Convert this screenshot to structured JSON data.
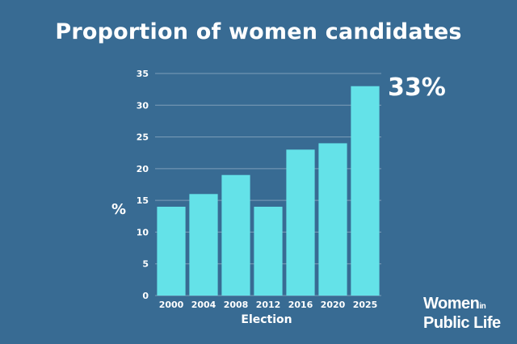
{
  "page": {
    "background": "#386b93"
  },
  "chart_data": {
    "type": "bar",
    "title": "Proportion of women candidates",
    "xlabel": "Election",
    "ylabel": "%",
    "categories": [
      "2000",
      "2004",
      "2008",
      "2012",
      "2016",
      "2020",
      "2025"
    ],
    "values": [
      14,
      16,
      19,
      14,
      23,
      24,
      33
    ],
    "ylim": [
      0,
      35
    ],
    "yticks": [
      0,
      5,
      10,
      15,
      20,
      25,
      30,
      35
    ],
    "grid": true,
    "bar_color": "#64e2e8",
    "annotation": {
      "text": "33%",
      "category": "2025"
    }
  },
  "logo": {
    "line1": "Women",
    "line1_small": "in",
    "line2": "Public Life"
  }
}
